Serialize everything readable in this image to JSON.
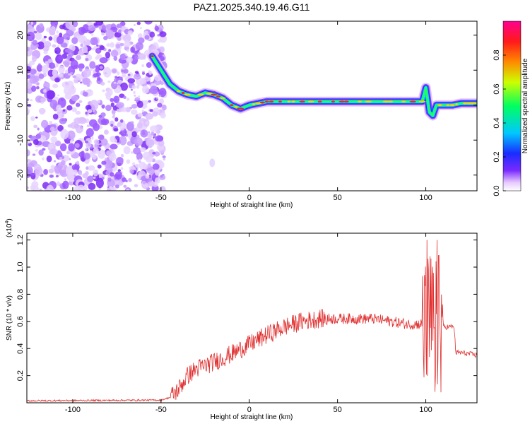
{
  "chart_data": [
    {
      "type": "heatmap",
      "title": "PAZ1.2025.340.19.46.G11",
      "xlabel": "Height of straight line (km)",
      "ylabel": "Frequency (Hz)",
      "xlim": [
        -126,
        129
      ],
      "ylim": [
        -24.5,
        24
      ],
      "xticks": [
        "-100",
        "-50",
        "0",
        "50",
        "100"
      ],
      "yticks": [
        "20",
        "10",
        "0",
        "-10",
        "-20"
      ],
      "colorbar": {
        "label": "Normalized spectral amplitude",
        "range": [
          0,
          1
        ],
        "ticks": [
          "0.0",
          "0.2",
          "0.4",
          "0.6",
          "0.8"
        ],
        "colors": [
          "#ffffff",
          "#e6c8ff",
          "#7a2bff",
          "#1a2cff",
          "#00c8ff",
          "#00ff60",
          "#cdff00",
          "#ff8a00",
          "#ff1a1a",
          "#ff0090"
        ]
      },
      "ridge": {
        "name": "signal frequency trace",
        "x": [
          -55,
          -50,
          -45,
          -40,
          -35,
          -30,
          -25,
          -20,
          -15,
          -10,
          -5,
          0,
          10,
          20,
          30,
          40,
          50,
          60,
          70,
          80,
          90,
          98,
          100,
          102,
          104,
          106,
          108,
          110,
          115,
          120,
          129
        ],
        "y": [
          14,
          10,
          6,
          4,
          3,
          2.5,
          3.5,
          3,
          2,
          0,
          -1,
          0,
          1,
          1,
          1,
          1,
          1,
          1,
          1,
          1,
          1,
          1,
          5,
          -2,
          -3,
          0,
          0,
          0,
          0,
          0.5,
          0.5
        ]
      },
      "noise_region": {
        "x_from": -126,
        "x_to": -48
      }
    },
    {
      "type": "line",
      "title": "",
      "xlabel": "Height of straight line (km)",
      "ylabel": "SNR (10 * v/v)",
      "scale_label": "(x10",
      "scale_exponent": "4",
      "xlim": [
        -126,
        129
      ],
      "ylim": [
        0,
        1.25
      ],
      "xticks": [
        "-100",
        "-50",
        "0",
        "50",
        "100"
      ],
      "yticks": [
        "1.2",
        "1.0",
        "0.8",
        "0.6",
        "0.4",
        "0.2"
      ],
      "series": [
        {
          "name": "SNR",
          "color": "#e03030",
          "envelope_x": [
            -126,
            -50,
            -45,
            -40,
            -35,
            -30,
            -20,
            -10,
            0,
            10,
            20,
            30,
            40,
            50,
            60,
            70,
            80,
            90,
            95,
            98,
            105,
            110,
            116,
            117,
            120,
            129
          ],
          "envelope_y": [
            0.015,
            0.02,
            0.04,
            0.1,
            0.2,
            0.25,
            0.3,
            0.36,
            0.43,
            0.5,
            0.56,
            0.6,
            0.62,
            0.62,
            0.62,
            0.62,
            0.6,
            0.58,
            0.58,
            0.58,
            0.58,
            0.56,
            0.56,
            0.37,
            0.37,
            0.35
          ]
        }
      ]
    }
  ]
}
